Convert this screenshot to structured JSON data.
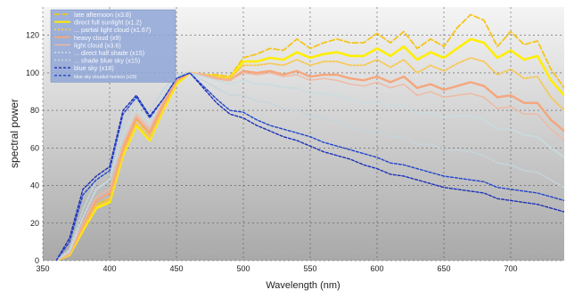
{
  "chart_data": {
    "type": "line",
    "title": "",
    "xlabel": "Wavelength (nm)",
    "ylabel": "spectral power",
    "xlim": [
      350,
      740
    ],
    "ylim": [
      0,
      135
    ],
    "x_ticks": [
      350,
      400,
      450,
      500,
      550,
      600,
      650,
      700
    ],
    "y_ticks": [
      0,
      20,
      40,
      60,
      80,
      100,
      120
    ],
    "grid": true,
    "legend_position": "top-left",
    "colors": {
      "background_top": "#f4f4f4",
      "background_bottom": "#a9a9a9",
      "grid": "#555555",
      "legend_background": "#8fa6d6"
    },
    "series": [
      {
        "name": "late afternoon (x3.8)",
        "color": "#f5c518",
        "dash": "6,3",
        "width": 1.8,
        "x": [
          360,
          370,
          380,
          390,
          400,
          410,
          420,
          430,
          440,
          450,
          460,
          470,
          480,
          490,
          500,
          510,
          520,
          530,
          540,
          550,
          560,
          570,
          580,
          590,
          600,
          610,
          620,
          630,
          640,
          650,
          660,
          670,
          680,
          690,
          700,
          710,
          720,
          730,
          740
        ],
        "y": [
          0,
          4,
          18,
          30,
          33,
          58,
          75,
          67,
          83,
          96,
          100,
          99,
          99,
          98,
          108,
          110,
          113,
          112,
          118,
          113,
          116,
          118,
          116,
          116,
          121,
          116,
          122,
          113,
          118,
          114,
          124,
          131,
          128,
          114,
          122,
          115,
          117,
          102,
          92
        ]
      },
      {
        "name": "direct full sunlight (x1.2)",
        "color": "#ffee00",
        "dash": "",
        "width": 2.6,
        "x": [
          360,
          370,
          380,
          390,
          400,
          410,
          420,
          430,
          440,
          450,
          460,
          470,
          480,
          490,
          500,
          510,
          520,
          530,
          540,
          550,
          560,
          570,
          580,
          590,
          600,
          610,
          620,
          630,
          640,
          650,
          660,
          670,
          680,
          690,
          700,
          710,
          720,
          730,
          740
        ],
        "y": [
          0,
          3,
          16,
          28,
          31,
          56,
          72,
          64,
          80,
          94,
          100,
          99,
          98,
          97,
          106,
          106,
          108,
          107,
          111,
          108,
          110,
          111,
          109,
          109,
          113,
          109,
          114,
          107,
          111,
          108,
          113,
          118,
          116,
          108,
          112,
          107,
          109,
          96,
          88
        ]
      },
      {
        "name": "... partial light cloud (x1.67)",
        "color": "#f7c84f",
        "dash": "2,2",
        "width": 1.8,
        "x": [
          360,
          370,
          380,
          390,
          400,
          410,
          420,
          430,
          440,
          450,
          460,
          470,
          480,
          490,
          500,
          510,
          520,
          530,
          540,
          550,
          560,
          570,
          580,
          590,
          600,
          610,
          620,
          630,
          640,
          650,
          660,
          670,
          680,
          690,
          700,
          710,
          720,
          730,
          740
        ],
        "y": [
          0,
          3,
          17,
          29,
          32,
          57,
          73,
          65,
          81,
          95,
          100,
          99,
          98,
          97,
          104,
          104,
          105,
          104,
          107,
          104,
          106,
          106,
          104,
          104,
          107,
          103,
          107,
          100,
          104,
          101,
          105,
          108,
          106,
          99,
          102,
          97,
          98,
          87,
          80
        ]
      },
      {
        "name": "heavy cloud (x9)",
        "color": "#f5a67c",
        "dash": "",
        "width": 2.4,
        "x": [
          360,
          370,
          380,
          390,
          400,
          410,
          420,
          430,
          440,
          450,
          460,
          470,
          480,
          490,
          500,
          510,
          520,
          530,
          540,
          550,
          560,
          570,
          580,
          590,
          600,
          610,
          620,
          630,
          640,
          650,
          660,
          670,
          680,
          690,
          700,
          710,
          720,
          730,
          740
        ],
        "y": [
          0,
          4,
          19,
          32,
          36,
          60,
          76,
          68,
          83,
          96,
          100,
          99,
          97,
          96,
          101,
          100,
          101,
          99,
          101,
          98,
          99,
          99,
          97,
          96,
          98,
          95,
          98,
          92,
          94,
          91,
          93,
          95,
          93,
          87,
          88,
          84,
          84,
          75,
          69
        ]
      },
      {
        "name": "light cloud (x3.6)",
        "color": "#f0b8a0",
        "dash": "",
        "width": 1.4,
        "x": [
          360,
          370,
          380,
          390,
          400,
          410,
          420,
          430,
          440,
          450,
          460,
          470,
          480,
          490,
          500,
          510,
          520,
          530,
          540,
          550,
          560,
          570,
          580,
          590,
          600,
          610,
          620,
          630,
          640,
          650,
          660,
          670,
          680,
          690,
          700,
          710,
          720,
          730,
          740
        ],
        "y": [
          0,
          4,
          20,
          34,
          38,
          62,
          78,
          70,
          85,
          97,
          100,
          99,
          97,
          96,
          100,
          99,
          100,
          98,
          99,
          96,
          97,
          96,
          94,
          93,
          95,
          92,
          94,
          88,
          90,
          87,
          88,
          89,
          87,
          81,
          82,
          78,
          78,
          70,
          64
        ]
      },
      {
        "name": "... direct half shade (x15)",
        "color": "#c8dce0",
        "dash": "2,2",
        "width": 1.8,
        "x": [
          360,
          370,
          380,
          390,
          400,
          410,
          420,
          430,
          440,
          450,
          460,
          470,
          480,
          490,
          500,
          510,
          520,
          530,
          540,
          550,
          560,
          570,
          580,
          590,
          600,
          610,
          620,
          630,
          640,
          650,
          660,
          670,
          680,
          690,
          700,
          710,
          720,
          730,
          740
        ],
        "y": [
          0,
          5,
          23,
          38,
          43,
          67,
          81,
          74,
          88,
          98,
          100,
          98,
          96,
          94,
          96,
          94,
          94,
          92,
          92,
          89,
          89,
          88,
          86,
          84,
          85,
          82,
          83,
          78,
          79,
          76,
          77,
          77,
          75,
          70,
          70,
          67,
          66,
          60,
          55
        ]
      },
      {
        "name": "... shade blue sky (x15)",
        "color": "#c5d5dc",
        "dash": "2,2",
        "width": 1.6,
        "x": [
          360,
          370,
          380,
          390,
          400,
          410,
          420,
          430,
          440,
          450,
          460,
          470,
          480,
          490,
          500,
          510,
          520,
          530,
          540,
          550,
          560,
          570,
          580,
          590,
          600,
          610,
          620,
          630,
          640,
          650,
          660,
          670,
          680,
          690,
          700,
          710,
          720,
          730,
          740
        ],
        "y": [
          0,
          6,
          27,
          43,
          48,
          72,
          86,
          79,
          91,
          99,
          100,
          96,
          92,
          88,
          88,
          85,
          84,
          81,
          80,
          77,
          76,
          74,
          71,
          69,
          69,
          66,
          66,
          62,
          62,
          59,
          59,
          58,
          56,
          52,
          51,
          48,
          47,
          43,
          39
        ]
      },
      {
        "name": "blue sky (x18)",
        "color": "#1a2fb8",
        "dash": "3,2",
        "width": 1.4,
        "x": [
          360,
          370,
          380,
          390,
          400,
          410,
          420,
          430,
          440,
          450,
          460,
          470,
          480,
          490,
          500,
          510,
          520,
          530,
          540,
          550,
          560,
          570,
          580,
          590,
          600,
          610,
          620,
          630,
          640,
          650,
          660,
          670,
          680,
          690,
          700,
          710,
          720,
          730,
          740
        ],
        "y": [
          0,
          12,
          38,
          45,
          50,
          80,
          88,
          77,
          86,
          97,
          100,
          92,
          84,
          78,
          76,
          72,
          69,
          66,
          64,
          61,
          58,
          56,
          54,
          51,
          49,
          46,
          45,
          43,
          41,
          39,
          38,
          37,
          36,
          33,
          32,
          31,
          30,
          28,
          26
        ]
      },
      {
        "name": "blue sky clouded horizon (x20)",
        "color": "#2244cc",
        "dash": "3,2",
        "width": 1.4,
        "x": [
          360,
          370,
          380,
          390,
          400,
          410,
          420,
          430,
          440,
          450,
          460,
          470,
          480,
          490,
          500,
          510,
          520,
          530,
          540,
          550,
          560,
          570,
          580,
          590,
          600,
          610,
          620,
          630,
          640,
          650,
          660,
          670,
          680,
          690,
          700,
          710,
          720,
          730,
          740
        ],
        "y": [
          0,
          10,
          35,
          43,
          48,
          78,
          87,
          76,
          86,
          97,
          100,
          93,
          86,
          80,
          79,
          75,
          72,
          70,
          68,
          66,
          63,
          61,
          59,
          57,
          55,
          52,
          51,
          49,
          47,
          45,
          44,
          43,
          42,
          39,
          38,
          37,
          36,
          34,
          32
        ]
      }
    ]
  }
}
